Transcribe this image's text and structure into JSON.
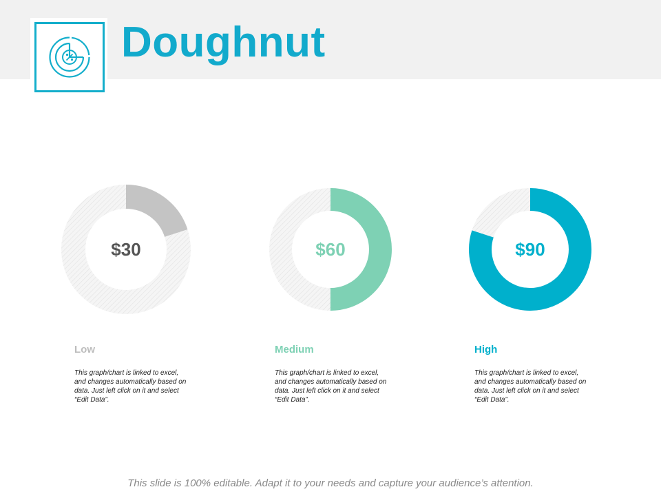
{
  "slide": {
    "title": "Doughnut",
    "footer": "This slide is 100% editable. Adapt it to your needs and capture your audience’s attention."
  },
  "icons": {
    "header": "percent-pie-chart-icon"
  },
  "colors": {
    "accent": "#12aacc",
    "header_band": "#f1f1f1",
    "track": "#ececec",
    "track_hatch": "#dcdcdc"
  },
  "chart_data": [
    {
      "type": "pie",
      "variant": "doughnut",
      "category": "Low",
      "value_label": "$30",
      "filled_fraction": 0.2,
      "color": "#c4c4c4",
      "value_color": "#555555",
      "label_color": "#bdbdbd",
      "description": "This graph/chart is linked to excel, and changes automatically based on data. Just left click on it and select “Edit Data”."
    },
    {
      "type": "pie",
      "variant": "doughnut",
      "category": "Medium",
      "value_label": "$60",
      "filled_fraction": 0.5,
      "color": "#7ed1b4",
      "value_color": "#7ed1b4",
      "label_color": "#7ed1b4",
      "description": "This graph/chart is linked to excel, and changes automatically based on data. Just left click on it and select “Edit Data”."
    },
    {
      "type": "pie",
      "variant": "doughnut",
      "category": "High",
      "value_label": "$90",
      "filled_fraction": 0.8,
      "color": "#00b0cc",
      "value_color": "#00b0cc",
      "label_color": "#00b0cc",
      "description": "This graph/chart is linked to excel, and changes automatically based on data. Just left click on it and select “Edit Data”."
    }
  ]
}
